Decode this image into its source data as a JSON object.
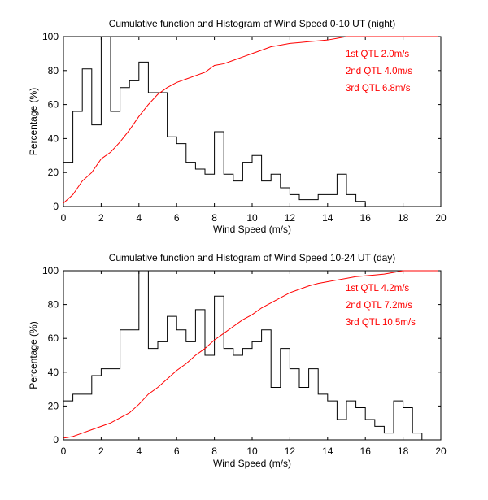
{
  "chart_data": [
    {
      "type": "line",
      "title": "Cumulative function and Histogram of Wind Speed 0-10 UT (night)",
      "xlabel": "Wind Speed (m/s)",
      "ylabel": "Percentage (%)",
      "xlim": [
        0,
        20
      ],
      "ylim": [
        0,
        100
      ],
      "xticks": [
        "0",
        "2",
        "4",
        "6",
        "8",
        "10",
        "12",
        "14",
        "16",
        "18",
        "20"
      ],
      "yticks": [
        "0",
        "20",
        "40",
        "60",
        "80",
        "100"
      ],
      "series": [
        {
          "name": "Histogram",
          "style": "stairs",
          "color": "#000000",
          "bin_edges": [
            0,
            0.5,
            1,
            1.5,
            2,
            2.5,
            3,
            3.5,
            4,
            4.5,
            5,
            5.5,
            6,
            6.5,
            7,
            7.5,
            8,
            8.5,
            9,
            9.5,
            10,
            10.5,
            11,
            11.5,
            12,
            12.5,
            13,
            13.5,
            14,
            14.5,
            15,
            15.5,
            16
          ],
          "values": [
            26,
            56,
            81,
            48,
            100,
            56,
            70,
            74,
            85,
            67,
            67,
            41,
            37,
            26,
            22,
            19,
            44,
            19,
            15,
            26,
            30,
            15,
            19,
            11,
            7,
            4,
            4,
            7,
            7,
            19,
            7,
            3
          ]
        },
        {
          "name": "Cumulative",
          "style": "line",
          "color": "#ff0000",
          "x": [
            0,
            0.5,
            1,
            1.5,
            2,
            2.5,
            3,
            3.5,
            4,
            4.5,
            5,
            5.5,
            6,
            6.5,
            7,
            7.5,
            8,
            8.5,
            9,
            9.5,
            10,
            10.5,
            11,
            11.5,
            12,
            12.5,
            13,
            13.5,
            14,
            14.5,
            15,
            15.5,
            16,
            20
          ],
          "y": [
            2,
            7,
            15,
            20,
            28,
            32,
            38,
            45,
            53,
            60,
            66,
            70,
            73,
            75,
            77,
            79,
            83,
            84,
            86,
            88,
            90,
            92,
            94,
            95,
            96,
            96.5,
            97,
            97.5,
            98,
            99,
            100,
            100,
            100,
            100
          ]
        }
      ],
      "annotations": [
        "1st QTL 2.0m/s",
        "2nd QTL 4.0m/s",
        "3rd QTL 6.8m/s"
      ],
      "annotation_color": "#ff0000"
    },
    {
      "type": "line",
      "title": "Cumulative function and Histogram of Wind Speed 10-24 UT (day)",
      "xlabel": "Wind Speed (m/s)",
      "ylabel": "Percentage (%)",
      "xlim": [
        0,
        20
      ],
      "ylim": [
        0,
        100
      ],
      "xticks": [
        "0",
        "2",
        "4",
        "6",
        "8",
        "10",
        "12",
        "14",
        "16",
        "18",
        "20"
      ],
      "yticks": [
        "0",
        "20",
        "40",
        "60",
        "80",
        "100"
      ],
      "series": [
        {
          "name": "Histogram",
          "style": "stairs",
          "color": "#000000",
          "bin_edges": [
            0,
            0.5,
            1,
            1.5,
            2,
            2.5,
            3,
            3.5,
            4,
            4.5,
            5,
            5.5,
            6,
            6.5,
            7,
            7.5,
            8,
            8.5,
            9,
            9.5,
            10,
            10.5,
            11,
            11.5,
            12,
            12.5,
            13,
            13.5,
            14,
            14.5,
            15,
            15.5,
            16,
            16.5,
            17,
            17.5,
            18,
            18.5,
            19
          ],
          "values": [
            23,
            27,
            27,
            38,
            42,
            42,
            65,
            65,
            100,
            54,
            58,
            73,
            65,
            58,
            77,
            50,
            85,
            54,
            50,
            54,
            58,
            65,
            31,
            54,
            42,
            31,
            42,
            27,
            23,
            12,
            23,
            19,
            12,
            8,
            4,
            23,
            19,
            4
          ]
        },
        {
          "name": "Cumulative",
          "style": "line",
          "color": "#ff0000",
          "x": [
            0,
            0.5,
            1,
            1.5,
            2,
            2.5,
            3,
            3.5,
            4,
            4.5,
            5,
            5.5,
            6,
            6.5,
            7,
            7.5,
            8,
            8.5,
            9,
            9.5,
            10,
            10.5,
            11,
            11.5,
            12,
            12.5,
            13,
            13.5,
            14,
            14.5,
            15,
            15.5,
            16,
            16.5,
            17,
            17.5,
            18,
            18.5,
            19,
            20
          ],
          "y": [
            1,
            2,
            4,
            6,
            8,
            10,
            13,
            16,
            21,
            27,
            31,
            36,
            41,
            45,
            50,
            54,
            59,
            63,
            67,
            71,
            74,
            78,
            81,
            84,
            87,
            89,
            91,
            92.5,
            93.5,
            94.5,
            95.5,
            96.5,
            97,
            97.5,
            98,
            99,
            100,
            100,
            100,
            100
          ]
        }
      ],
      "annotations": [
        "1st QTL 4.2m/s",
        "2nd QTL 7.2m/s",
        "3rd QTL 10.5m/s"
      ],
      "annotation_color": "#ff0000"
    }
  ]
}
